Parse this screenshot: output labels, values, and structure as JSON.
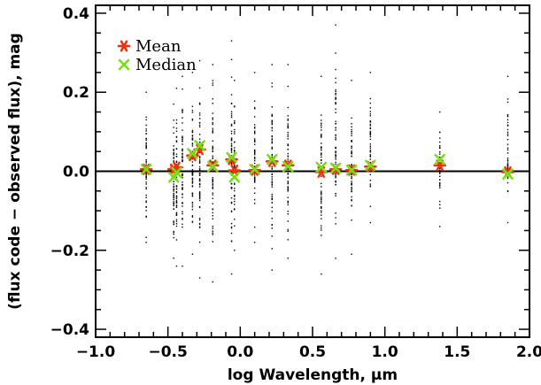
{
  "chart_data": {
    "type": "scatter",
    "title": "",
    "xlabel": "log Wavelength, μm",
    "ylabel": "(flux code − observed flux), mag",
    "xlim": [
      -1.0,
      2.0
    ],
    "ylim": [
      -0.42,
      0.42
    ],
    "x_ticks": [
      -1.0,
      -0.5,
      0.0,
      0.5,
      1.0,
      1.5,
      2.0
    ],
    "x_tick_labels": [
      "−1.0",
      "−0.5",
      "0.0",
      "0.5",
      "1.0",
      "1.5",
      "2.0"
    ],
    "y_ticks": [
      -0.4,
      -0.2,
      0.0,
      0.2,
      0.4
    ],
    "y_tick_labels": [
      "−0.4",
      "−0.2",
      "0.0",
      "0.2",
      "0.4"
    ],
    "reference_line_y": 0.0,
    "legend_position": "top-left",
    "colors": {
      "mean": "#ee3311",
      "median": "#77e011",
      "points": "#000000"
    },
    "columns": [
      {
        "x": -0.65,
        "ymin": -0.18,
        "ymax": 0.2,
        "n": 50
      },
      {
        "x": -0.46,
        "ymin": -0.22,
        "ymax": 0.17,
        "n": 60
      },
      {
        "x": -0.44,
        "ymin": -0.24,
        "ymax": 0.21,
        "n": 60
      },
      {
        "x": -0.4,
        "ymin": -0.24,
        "ymax": 0.24,
        "n": 60
      },
      {
        "x": -0.33,
        "ymin": -0.21,
        "ymax": 0.25,
        "n": 65
      },
      {
        "x": -0.28,
        "ymin": -0.27,
        "ymax": 0.28,
        "n": 70
      },
      {
        "x": -0.19,
        "ymin": -0.28,
        "ymax": 0.27,
        "n": 65
      },
      {
        "x": -0.06,
        "ymin": -0.26,
        "ymax": 0.33,
        "n": 70
      },
      {
        "x": -0.04,
        "ymin": -0.2,
        "ymax": 0.23,
        "n": 55
      },
      {
        "x": 0.1,
        "ymin": -0.18,
        "ymax": 0.25,
        "n": 55
      },
      {
        "x": 0.22,
        "ymin": -0.25,
        "ymax": 0.27,
        "n": 65
      },
      {
        "x": 0.33,
        "ymin": -0.22,
        "ymax": 0.27,
        "n": 60
      },
      {
        "x": 0.56,
        "ymin": -0.26,
        "ymax": 0.24,
        "n": 60
      },
      {
        "x": 0.66,
        "ymin": -0.22,
        "ymax": 0.37,
        "n": 65
      },
      {
        "x": 0.77,
        "ymin": -0.21,
        "ymax": 0.23,
        "n": 55
      },
      {
        "x": 0.9,
        "ymin": -0.13,
        "ymax": 0.25,
        "n": 50
      },
      {
        "x": 1.38,
        "ymin": -0.14,
        "ymax": 0.15,
        "n": 40
      },
      {
        "x": 1.85,
        "ymin": -0.13,
        "ymax": 0.24,
        "n": 40
      }
    ],
    "series": [
      {
        "name": "Mean",
        "marker": "asterisk",
        "x": [
          -0.65,
          -0.46,
          -0.44,
          -0.33,
          -0.28,
          -0.19,
          -0.06,
          -0.04,
          0.1,
          0.22,
          0.33,
          0.56,
          0.66,
          0.77,
          0.9,
          1.38,
          1.85
        ],
        "y": [
          0.005,
          0.005,
          0.01,
          0.04,
          0.055,
          0.015,
          0.03,
          0.002,
          0.003,
          0.025,
          0.015,
          -0.002,
          0.005,
          0.003,
          0.012,
          0.015,
          -0.002
        ]
      },
      {
        "name": "Median",
        "marker": "x",
        "x": [
          -0.65,
          -0.46,
          -0.44,
          -0.33,
          -0.28,
          -0.19,
          -0.06,
          -0.04,
          0.1,
          0.22,
          0.33,
          0.56,
          0.66,
          0.77,
          0.9,
          1.38,
          1.85
        ],
        "y": [
          0.005,
          -0.015,
          -0.003,
          0.045,
          0.065,
          0.012,
          0.035,
          -0.015,
          0.005,
          0.03,
          0.012,
          0.01,
          0.008,
          0.003,
          0.015,
          0.03,
          -0.007
        ]
      }
    ]
  }
}
